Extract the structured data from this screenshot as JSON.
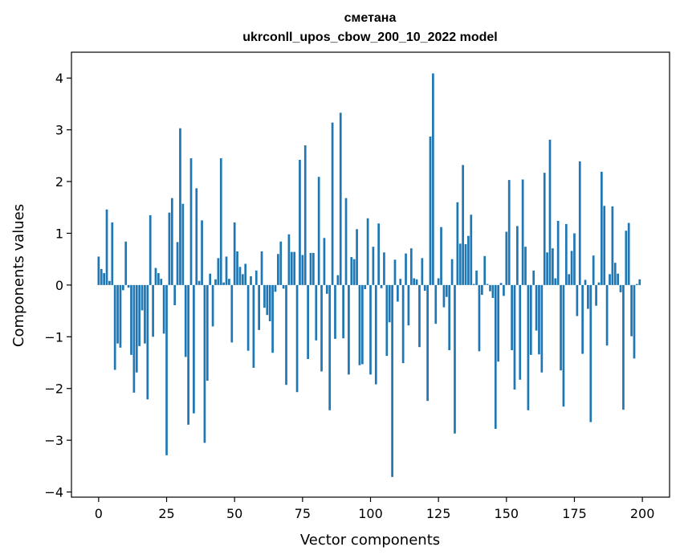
{
  "chart_data": {
    "type": "bar",
    "title": "сметана",
    "subtitle": "ukrconll_upos_cbow_200_10_2022 model",
    "xlabel": "Vector components",
    "ylabel": "Components values",
    "xlim": [
      -10,
      210
    ],
    "ylim": [
      -4.1,
      4.5
    ],
    "xticks": [
      0,
      25,
      50,
      75,
      100,
      125,
      150,
      175,
      200
    ],
    "yticks": [
      -4,
      -3,
      -2,
      -1,
      0,
      1,
      2,
      3,
      4
    ],
    "ytick_labels": [
      "−4",
      "−3",
      "−2",
      "−1",
      "0",
      "1",
      "2",
      "3",
      "4"
    ],
    "bar_color": "#1f77b4",
    "grid": false,
    "values": [
      0.55,
      0.31,
      0.23,
      1.46,
      0.08,
      1.21,
      -1.64,
      -1.13,
      -1.21,
      -0.1,
      0.84,
      -0.05,
      -1.35,
      -2.08,
      -1.69,
      -1.18,
      -0.49,
      -1.13,
      -2.21,
      1.35,
      -1.0,
      0.33,
      0.23,
      0.12,
      -0.94,
      -3.29,
      1.4,
      1.68,
      -0.39,
      0.83,
      3.03,
      1.57,
      -1.39,
      -2.7,
      2.45,
      -2.48,
      1.87,
      0.08,
      1.25,
      -3.05,
      -1.85,
      0.22,
      -0.8,
      0.11,
      0.52,
      2.45,
      0.05,
      0.55,
      0.12,
      -1.11,
      1.21,
      0.65,
      0.35,
      0.21,
      0.41,
      -1.27,
      0.17,
      -1.6,
      0.28,
      -0.87,
      0.65,
      -0.44,
      -0.58,
      -0.7,
      -1.31,
      -0.13,
      0.6,
      0.84,
      -0.07,
      -1.93,
      0.98,
      0.64,
      0.64,
      -2.07,
      2.42,
      0.58,
      2.7,
      -1.43,
      0.62,
      0.62,
      -1.07,
      2.09,
      -1.67,
      0.91,
      -0.17,
      -2.42,
      3.14,
      -1.04,
      0.19,
      3.33,
      -1.03,
      1.68,
      -1.73,
      0.54,
      0.5,
      1.08,
      -1.55,
      -1.53,
      -0.08,
      1.29,
      -1.73,
      0.74,
      -1.92,
      1.19,
      -0.06,
      0.63,
      -1.37,
      -0.72,
      -3.71,
      0.49,
      -0.32,
      0.12,
      -1.51,
      0.61,
      -0.78,
      0.71,
      0.13,
      0.11,
      -1.2,
      0.52,
      -0.11,
      -2.24,
      2.87,
      4.09,
      -0.75,
      0.13,
      1.12,
      -0.43,
      -0.23,
      -1.26,
      0.5,
      -2.87,
      1.6,
      0.8,
      2.32,
      0.79,
      0.95,
      1.36,
      0.02,
      0.28,
      -1.28,
      -0.19,
      0.56,
      0.02,
      -0.12,
      -0.25,
      -2.78,
      -1.48,
      0.04,
      -0.21,
      1.03,
      2.03,
      -1.26,
      -2.02,
      1.14,
      -1.83,
      2.04,
      0.74,
      -2.42,
      -1.35,
      0.28,
      -0.88,
      -1.34,
      -1.69,
      2.17,
      0.63,
      2.81,
      0.71,
      0.13,
      1.24,
      -1.65,
      -2.35,
      1.18,
      0.21,
      0.66,
      1.0,
      -0.6,
      2.39,
      -1.33,
      0.1,
      -0.46,
      -2.65,
      0.57,
      -0.4,
      0.05,
      2.19,
      1.53,
      -1.17,
      0.21,
      1.52,
      0.43,
      0.22,
      -0.14,
      -2.41,
      1.05,
      1.2,
      -0.99,
      -1.42,
      0.02,
      0.11
    ]
  }
}
